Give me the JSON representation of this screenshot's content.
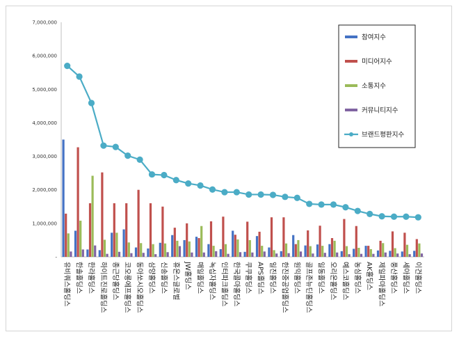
{
  "chart_data": {
    "type": "bar",
    "title": "",
    "xlabel": "",
    "ylabel": "",
    "ylim": [
      0,
      7000000
    ],
    "yticks": [
      "-",
      "1,000,000",
      "2,000,000",
      "3,000,000",
      "4,000,000",
      "5,000,000",
      "6,000,000",
      "7,000,000"
    ],
    "grid": false,
    "legend_position": "top-right",
    "categories": [
      "유비쿼스홀딩스",
      "한솔홀딩스",
      "한라홀딩스",
      "하이트진로홀딩스",
      "종근당홀딩스",
      "코오롱에프홀딩스",
      "동아쏘시오홀딩스",
      "삼양홀딩스",
      "신송홀딩스",
      "휴온스글로벌",
      "JW홀딩스",
      "매일홀딩스",
      "녹십자홀딩스",
      "인터파크홀딩스",
      "한국콜마홀딩스",
      "쿠쿠홀딩스",
      "APS홀딩스",
      "일진홀딩스",
      "한진중공업홀딩스",
      "원익홀딩스",
      "골프존뉴딘홀딩스",
      "일동홀딩스",
      "오리온홀딩스",
      "예스코홀딩스",
      "농심홀딩스",
      "AK홀딩스",
      "제일파마홀딩스",
      "풍산홀딩스",
      "세아홀딩스",
      "이건홀딩스"
    ],
    "series": [
      {
        "name": "참여지수",
        "type": "bar",
        "color": "#4472c4",
        "values": [
          3500000,
          780000,
          220000,
          200000,
          720000,
          820000,
          280000,
          250000,
          420000,
          650000,
          500000,
          600000,
          380000,
          230000,
          780000,
          150000,
          620000,
          280000,
          170000,
          650000,
          340000,
          370000,
          380000,
          170000,
          240000,
          330000,
          190000,
          180000,
          160000,
          180000
        ]
      },
      {
        "name": "미디어지수",
        "type": "bar",
        "color": "#c0504d",
        "values": [
          1290000,
          3270000,
          1600000,
          2520000,
          1600000,
          1600000,
          2000000,
          1600000,
          1500000,
          870000,
          1000000,
          560000,
          1060000,
          1200000,
          660000,
          1050000,
          750000,
          1180000,
          1180000,
          380000,
          790000,
          930000,
          560000,
          1130000,
          920000,
          330000,
          480000,
          760000,
          720000,
          530000
        ]
      },
      {
        "name": "소통지수",
        "type": "bar",
        "color": "#9bbb59",
        "values": [
          700000,
          1080000,
          2420000,
          510000,
          720000,
          430000,
          410000,
          380000,
          400000,
          480000,
          460000,
          920000,
          330000,
          380000,
          520000,
          500000,
          330000,
          200000,
          400000,
          500000,
          320000,
          330000,
          480000,
          320000,
          270000,
          230000,
          410000,
          260000,
          360000,
          400000
        ]
      },
      {
        "name": "커뮤니티지수",
        "type": "bar",
        "color": "#8064a2",
        "values": [
          160000,
          220000,
          340000,
          90000,
          150000,
          110000,
          120000,
          80000,
          140000,
          320000,
          130000,
          130000,
          170000,
          90000,
          140000,
          130000,
          160000,
          100000,
          110000,
          160000,
          100000,
          120000,
          130000,
          80000,
          90000,
          90000,
          130000,
          100000,
          80000,
          100000
        ]
      },
      {
        "name": "브랜드평판지수",
        "type": "line",
        "color": "#4bacc6",
        "values": [
          5700000,
          5380000,
          4590000,
          3320000,
          3280000,
          3020000,
          2900000,
          2460000,
          2440000,
          2290000,
          2190000,
          2130000,
          2010000,
          1930000,
          1930000,
          1860000,
          1860000,
          1850000,
          1790000,
          1760000,
          1580000,
          1560000,
          1560000,
          1480000,
          1370000,
          1280000,
          1210000,
          1200000,
          1200000,
          1180000
        ]
      }
    ]
  }
}
